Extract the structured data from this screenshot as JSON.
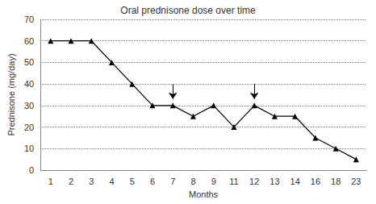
{
  "chart_data": {
    "type": "line",
    "title": "Oral prednisone dose over time",
    "x_label": "Months",
    "y_label": "Prednisone (mg/day)",
    "categories": [
      "1",
      "2",
      "3",
      "4",
      "5",
      "6",
      "7",
      "8",
      "9",
      "11",
      "12",
      "13",
      "14",
      "16",
      "18",
      "23"
    ],
    "values": [
      60,
      60,
      60,
      50,
      40,
      30,
      30,
      25,
      30,
      20,
      30,
      25,
      25,
      15,
      10,
      5
    ],
    "color": "#000000",
    "marker": "triangle",
    "ylim": [
      0,
      70
    ],
    "yticks": [
      0,
      10,
      20,
      30,
      40,
      50,
      60,
      70
    ],
    "grid": true,
    "arrows": [
      {
        "x": "7",
        "y_from": 40,
        "y_to": 33
      },
      {
        "x": "12",
        "y_from": 40,
        "y_to": 33
      }
    ]
  }
}
